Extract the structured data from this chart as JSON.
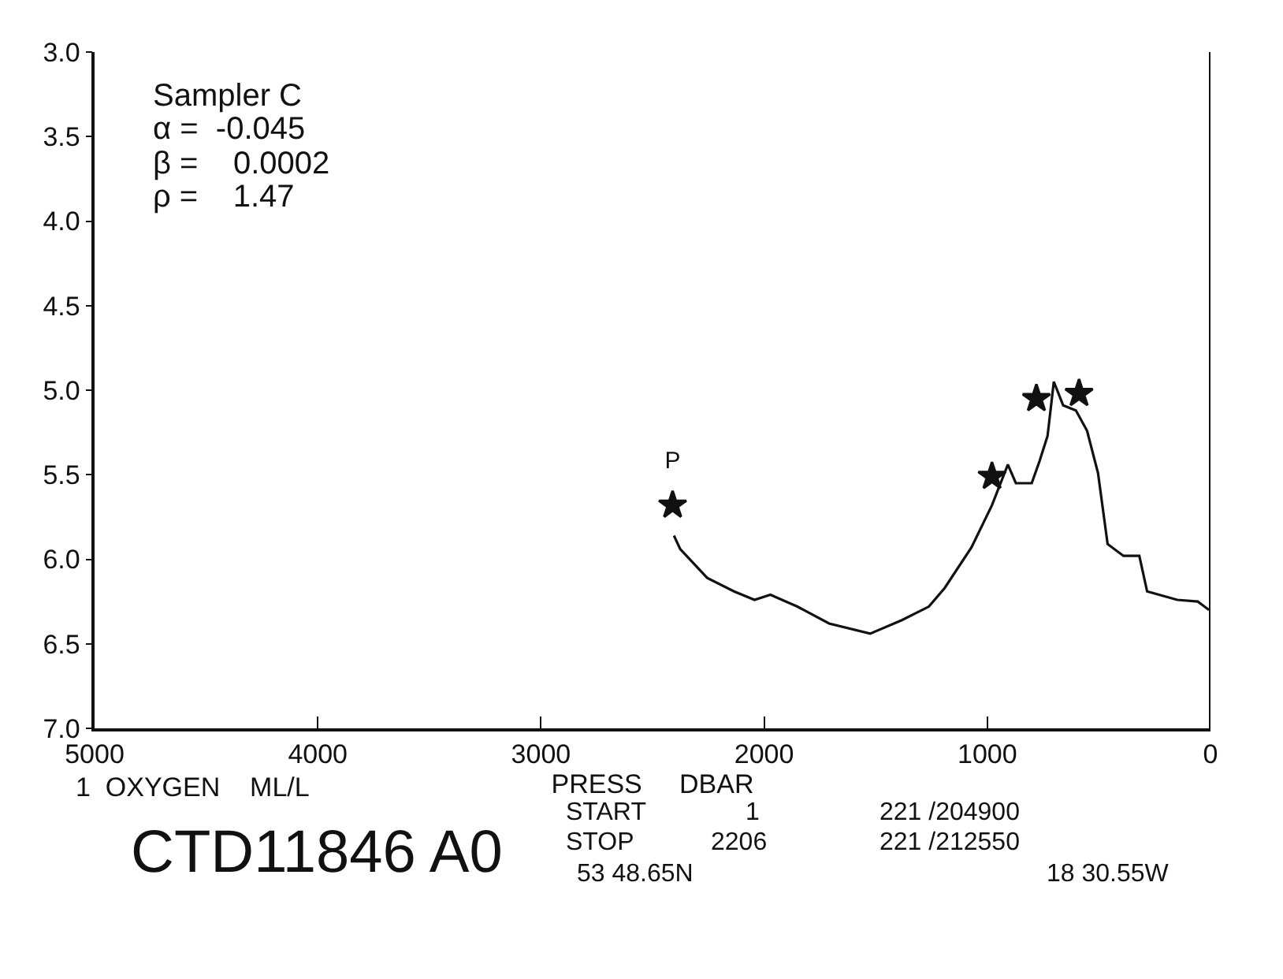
{
  "chart_data": {
    "type": "line",
    "xlabel": "PRESS     DBAR",
    "xlim": [
      5000,
      0
    ],
    "xticks": [
      5000,
      4000,
      3000,
      2000,
      1000,
      0
    ],
    "ylim": [
      7,
      3
    ],
    "yticks": [
      {
        "value": 3,
        "label": "3.0"
      },
      {
        "value": 3.5,
        "label": "3.5"
      },
      {
        "value": 4,
        "label": "4.0"
      },
      {
        "value": 4.5,
        "label": "4.5"
      },
      {
        "value": 5,
        "label": "5.0"
      },
      {
        "value": 5.5,
        "label": "5.5"
      },
      {
        "value": 6,
        "label": "6.0"
      },
      {
        "value": 6.5,
        "label": "6.5"
      },
      {
        "value": 7,
        "label": "7.0"
      }
    ],
    "grid": false,
    "series": [
      {
        "color": "#111111",
        "marker": "none",
        "x": [
          2404,
          2376,
          2255,
          2135,
          2043,
          1972,
          1851,
          1709,
          1525,
          1383,
          1262,
          1191,
          1071,
          979,
          908,
          872,
          801,
          766,
          730,
          702,
          660,
          603,
          553,
          504,
          461,
          390,
          319,
          284,
          149,
          57,
          7
        ],
        "values": [
          5.86,
          5.94,
          6.11,
          6.19,
          6.24,
          6.21,
          6.28,
          6.38,
          6.44,
          6.36,
          6.28,
          6.17,
          5.93,
          5.68,
          5.44,
          5.55,
          5.55,
          5.42,
          5.27,
          4.95,
          5.09,
          5.12,
          5.24,
          5.49,
          5.91,
          5.98,
          5.98,
          6.19,
          6.24,
          6.25,
          6.3
        ]
      },
      {
        "type": "scatter",
        "color": "#111111",
        "marker": "star",
        "x": [
          2410,
          979,
          780,
          589
        ],
        "values": [
          5.68,
          5.51,
          5.05,
          5.02
        ]
      }
    ],
    "ref_lines": [
      {
        "axis": "x",
        "value": 0,
        "color": "#111111"
      }
    ],
    "annotations": [
      {
        "text": "P",
        "x": 2410,
        "y": 5.68
      },
      "Sampler C",
      "α =  -0.045",
      "β =    0.0002",
      "ρ =    1.47",
      "1  OXYGEN    ML/L",
      "CTD11846 A0",
      "START",
      "1",
      "221 /204900",
      "STOP",
      "2206",
      "221 /212550",
      "53 48.65N",
      "18 30.55W"
    ]
  }
}
